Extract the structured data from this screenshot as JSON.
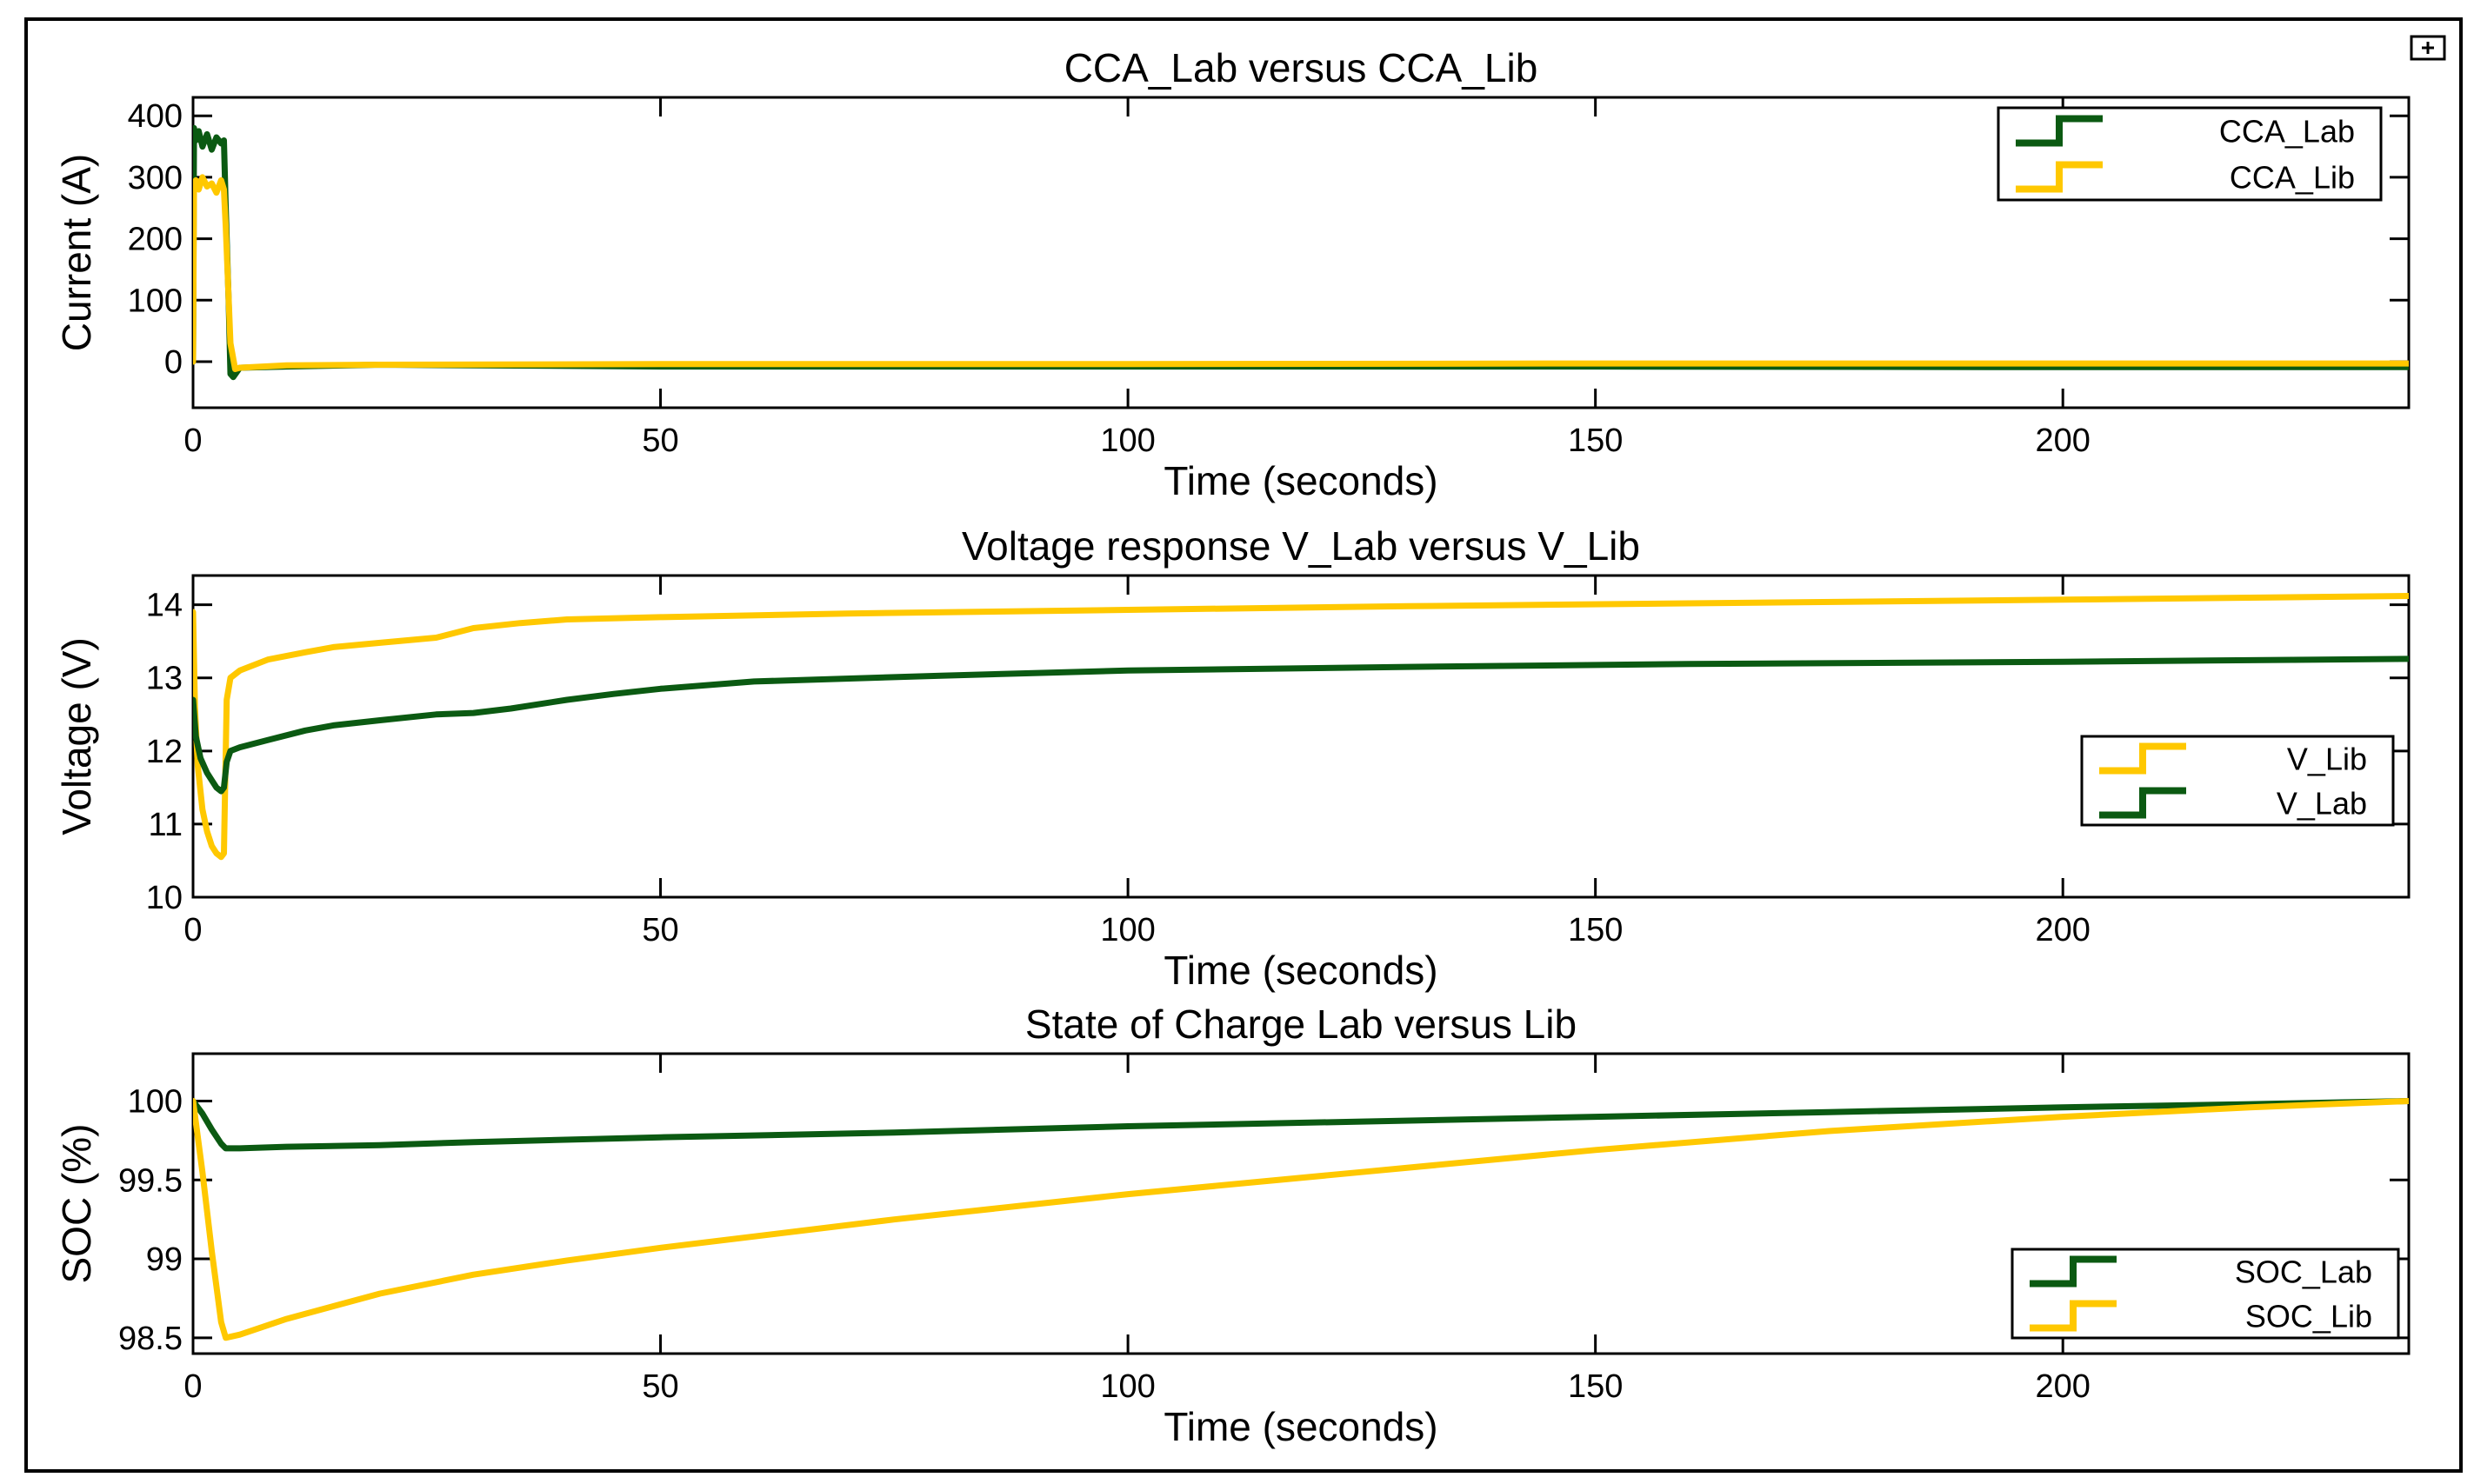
{
  "window": {
    "corner_icon": "expand-icon"
  },
  "chart_data": [
    {
      "id": "current",
      "type": "line",
      "title": "CCA_Lab versus CCA_Lib",
      "xlabel": "Time (seconds)",
      "ylabel": "Current (A)",
      "xlim": [
        0,
        237
      ],
      "ylim": [
        -75,
        430
      ],
      "xticks": [
        0,
        50,
        100,
        150,
        200
      ],
      "yticks": [
        0,
        100,
        200,
        300,
        400
      ],
      "ytick_labels": [
        "0",
        "100",
        "200",
        "300",
        "400"
      ],
      "legend": {
        "placement": "top-right",
        "entries": [
          {
            "name": "CCA_Lab",
            "color": "#0b5a12"
          },
          {
            "name": "CCA_Lib",
            "color": "#ffc800"
          }
        ]
      },
      "series": [
        {
          "name": "CCA_Lab",
          "color": "#0b5a12",
          "x": [
            0,
            0.1,
            0.3,
            0.6,
            1,
            1.5,
            2,
            2.5,
            3,
            3.3,
            3.5,
            3.8,
            4,
            4.3,
            5,
            10,
            20,
            50,
            100,
            150,
            200,
            237
          ],
          "y": [
            0,
            380,
            360,
            375,
            350,
            370,
            345,
            365,
            355,
            360,
            250,
            100,
            -20,
            -25,
            -10,
            -8,
            -5,
            -8,
            -8,
            -8,
            -9,
            -9
          ]
        },
        {
          "name": "CCA_Lib",
          "color": "#ffc800",
          "x": [
            0,
            0.1,
            0.3,
            0.6,
            1,
            1.5,
            2,
            2.5,
            3,
            3.3,
            3.5,
            4,
            4.5,
            5,
            10,
            20,
            50,
            100,
            150,
            200,
            237
          ],
          "y": [
            0,
            290,
            295,
            280,
            300,
            285,
            290,
            275,
            295,
            280,
            220,
            30,
            -12,
            -10,
            -6,
            -5,
            -4,
            -4,
            -3,
            -3,
            -3
          ]
        }
      ]
    },
    {
      "id": "voltage",
      "type": "line",
      "title": "Voltage response V_Lab versus V_Lib",
      "xlabel": "Time (seconds)",
      "ylabel": "Voltage (V)",
      "xlim": [
        0,
        237
      ],
      "ylim": [
        10,
        14.4
      ],
      "xticks": [
        0,
        50,
        100,
        150,
        200
      ],
      "yticks": [
        10,
        11,
        12,
        13,
        14
      ],
      "ytick_labels": [
        "10",
        "11",
        "12",
        "13",
        "14"
      ],
      "legend": {
        "placement": "right",
        "entries": [
          {
            "name": "V_Lib",
            "color": "#ffc800"
          },
          {
            "name": "V_Lab",
            "color": "#0b5a12"
          }
        ]
      },
      "series": [
        {
          "name": "V_Lib",
          "color": "#ffc800",
          "x": [
            0,
            0.2,
            0.5,
            1,
            1.5,
            2,
            2.5,
            3,
            3.3,
            3.6,
            4,
            5,
            8,
            12,
            15,
            20,
            26,
            30,
            35,
            40,
            50,
            70,
            100,
            130,
            160,
            200,
            237
          ],
          "y": [
            13.9,
            12.6,
            11.8,
            11.2,
            10.9,
            10.7,
            10.6,
            10.55,
            10.6,
            12.7,
            13.0,
            13.1,
            13.25,
            13.35,
            13.42,
            13.48,
            13.55,
            13.68,
            13.75,
            13.8,
            13.83,
            13.88,
            13.93,
            13.98,
            14.02,
            14.07,
            14.12
          ]
        },
        {
          "name": "V_Lab",
          "color": "#0b5a12",
          "x": [
            0,
            0.3,
            0.8,
            1.5,
            2,
            2.5,
            3,
            3.3,
            3.6,
            4,
            5,
            8,
            12,
            15,
            20,
            26,
            30,
            34,
            40,
            45,
            50,
            60,
            80,
            100,
            130,
            160,
            200,
            237
          ],
          "y": [
            12.7,
            12.2,
            11.9,
            11.7,
            11.6,
            11.5,
            11.45,
            11.5,
            11.85,
            12.0,
            12.05,
            12.15,
            12.28,
            12.35,
            12.42,
            12.5,
            12.52,
            12.58,
            12.7,
            12.78,
            12.85,
            12.95,
            13.03,
            13.1,
            13.15,
            13.19,
            13.22,
            13.26
          ]
        }
      ]
    },
    {
      "id": "soc",
      "type": "line",
      "title": "State of Charge Lab versus Lib",
      "xlabel": "Time (seconds)",
      "ylabel": "SOC (%)",
      "xlim": [
        0,
        237
      ],
      "ylim": [
        98.4,
        100.3
      ],
      "xticks": [
        0,
        50,
        100,
        150,
        200
      ],
      "yticks": [
        98.5,
        99,
        99.5,
        100
      ],
      "ytick_labels": [
        "98.5",
        "99",
        "99.5",
        "100"
      ],
      "legend": {
        "placement": "bottom-right",
        "entries": [
          {
            "name": "SOC_Lab",
            "color": "#0b5a12"
          },
          {
            "name": "SOC_Lib",
            "color": "#ffc800"
          }
        ]
      },
      "series": [
        {
          "name": "SOC_Lab",
          "color": "#0b5a12",
          "x": [
            0,
            1,
            2,
            3,
            3.5,
            5,
            10,
            20,
            30,
            50,
            75,
            100,
            125,
            150,
            175,
            200,
            220,
            237
          ],
          "y": [
            100,
            99.92,
            99.82,
            99.73,
            99.7,
            99.7,
            99.71,
            99.72,
            99.74,
            99.77,
            99.8,
            99.84,
            99.87,
            99.9,
            99.93,
            99.96,
            99.98,
            100
          ]
        },
        {
          "name": "SOC_Lib",
          "color": "#ffc800",
          "x": [
            0,
            1,
            2,
            3,
            3.5,
            5,
            10,
            20,
            30,
            40,
            50,
            75,
            100,
            125,
            150,
            175,
            200,
            220,
            237
          ],
          "y": [
            100,
            99.55,
            99.05,
            98.6,
            98.5,
            98.52,
            98.62,
            98.78,
            98.9,
            98.99,
            99.07,
            99.25,
            99.41,
            99.55,
            99.69,
            99.81,
            99.9,
            99.96,
            100
          ]
        }
      ]
    }
  ]
}
